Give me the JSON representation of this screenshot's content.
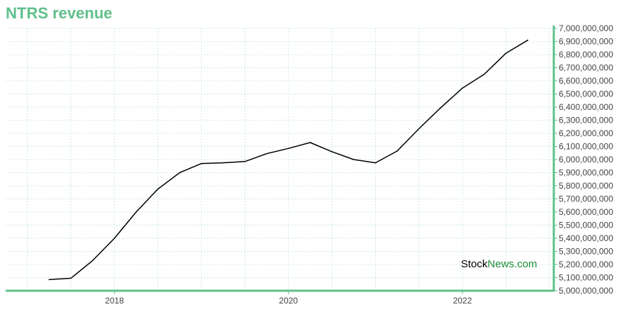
{
  "title": "NTRS revenue",
  "watermark": {
    "part1": "Stock",
    "part2": "News.com"
  },
  "colors": {
    "accent": "#5fc08b",
    "axis": "#5fc08b",
    "grid": "#a8dcc0",
    "line": "#000000",
    "watermark_accent": "#1f8f3a"
  },
  "chart_data": {
    "type": "line",
    "title": "NTRS revenue",
    "xlabel": "",
    "ylabel": "",
    "x_tick_labels": [
      "2018",
      "2020",
      "2022"
    ],
    "x_ticks": [
      2018.0,
      2020.0,
      2022.0
    ],
    "xlim": [
      2016.75,
      2023.05
    ],
    "ylim": [
      5000000000,
      7000000000
    ],
    "y_tick_labels": [
      "5,000,000,000",
      "5,100,000,000",
      "5,200,000,000",
      "5,300,000,000",
      "5,400,000,000",
      "5,500,000,000",
      "5,600,000,000",
      "5,700,000,000",
      "5,800,000,000",
      "5,900,000,000",
      "6,000,000,000",
      "6,100,000,000",
      "6,200,000,000",
      "6,300,000,000",
      "6,400,000,000",
      "6,500,000,000",
      "6,600,000,000",
      "6,700,000,000",
      "6,800,000,000",
      "6,900,000,000",
      "7,000,000,000"
    ],
    "y_axis_position": "right",
    "grid": true,
    "series": [
      {
        "x": [
          2017.25,
          2017.5,
          2017.75,
          2018.0,
          2018.25,
          2018.5,
          2018.75,
          2019.0,
          2019.25,
          2019.5,
          2019.75,
          2020.0,
          2020.25,
          2020.5,
          2020.75,
          2021.0,
          2021.25,
          2021.5,
          2021.75,
          2022.0,
          2022.25,
          2022.5,
          2022.75
        ],
        "values": [
          5085000000,
          5095000000,
          5230000000,
          5400000000,
          5600000000,
          5775000000,
          5900000000,
          5970000000,
          5975000000,
          5985000000,
          6045000000,
          6085000000,
          6130000000,
          6060000000,
          6000000000,
          5975000000,
          6065000000,
          6235000000,
          6395000000,
          6545000000,
          6650000000,
          6810000000,
          6910000000
        ]
      }
    ]
  }
}
